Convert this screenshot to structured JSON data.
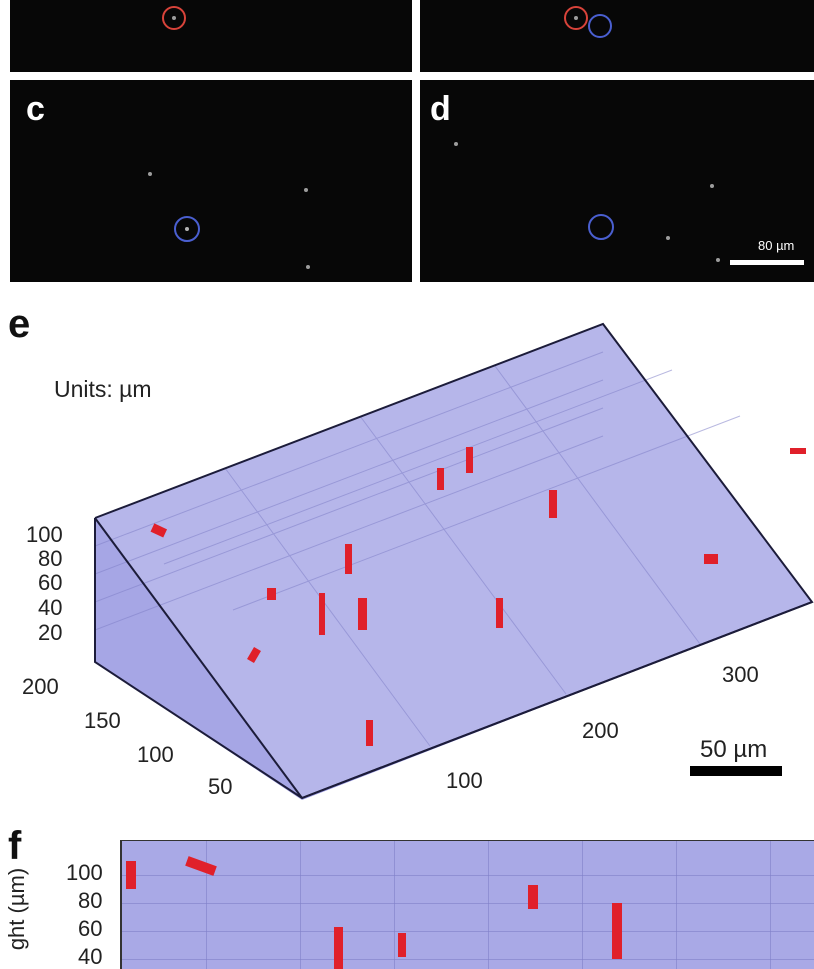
{
  "panels": {
    "c": {
      "letter": "c"
    },
    "d": {
      "letter": "d",
      "scale_label": "80 µm"
    }
  },
  "panel_e": {
    "letter": "e",
    "units_label": "Units: µm",
    "z_ticks": [
      "100",
      "80",
      "60",
      "40",
      "20"
    ],
    "y_ticks": [
      "200",
      "150",
      "100",
      "50"
    ],
    "x_ticks": [
      "100",
      "200",
      "300"
    ],
    "scale_label": "50 µm"
  },
  "panel_f": {
    "letter": "f",
    "ylabel_visible": "ght (µm)",
    "y_ticks": [
      "100",
      "80",
      "60",
      "40"
    ]
  },
  "colors": {
    "volume_fill": "#a9a9e6",
    "track_red": "#e0202a",
    "ring_red": "#d8433a",
    "ring_blue": "#4a5fd0"
  }
}
